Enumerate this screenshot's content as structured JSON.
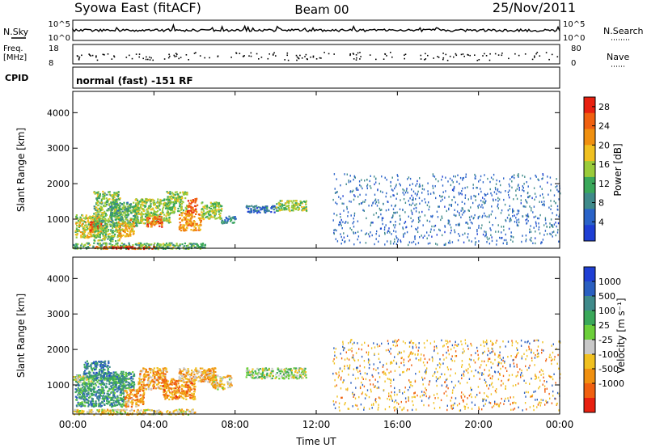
{
  "header": {
    "station": "Syowa East (fitACF)",
    "beam": "Beam 00",
    "date": "25/Nov/2011"
  },
  "top_strip": {
    "left_label_1": "N.Sky",
    "left_label_2_line1": "Freq.",
    "left_label_2_line2": "[MHz]",
    "left_label_3": "CPID",
    "right_label_1": "N.Search",
    "right_label_2": "Nave",
    "sky_ticks": [
      "10^5",
      "10^0"
    ],
    "search_ticks": [
      "10^5",
      "10^0"
    ],
    "freq_ticks": [
      "18",
      "8"
    ],
    "nave_ticks": [
      "80",
      "0"
    ],
    "cpid_text": "normal (fast) -151 RF"
  },
  "colors": {
    "power_scale": [
      "#1f3fd4",
      "#2a63c8",
      "#3f8a8a",
      "#3aa85a",
      "#9acb3a",
      "#f0c020",
      "#f09010",
      "#f06010",
      "#e82010"
    ],
    "velocity_scale": [
      "#1f3fd4",
      "#2a5fc0",
      "#3f8a8a",
      "#3aa85a",
      "#6ccf3a",
      "#c8c8c8",
      "#f0c020",
      "#f09010",
      "#f06010",
      "#e82010"
    ]
  },
  "chart_data": [
    {
      "type": "heatmap",
      "panel": "power",
      "ylabel": "Slant Range [km]",
      "xlabel": "",
      "x_ticks": [
        "00:00",
        "04:00",
        "08:00",
        "12:00",
        "16:00",
        "20:00",
        "00:00"
      ],
      "xlim_hours": [
        0,
        24
      ],
      "y_ticks": [
        1000,
        2000,
        3000,
        4000
      ],
      "ylim": [
        180,
        4600
      ],
      "colorbar_label": "Power [dB]",
      "colorbar_ticks": [
        4,
        8,
        12,
        16,
        20,
        24,
        28
      ],
      "colorbar_range": [
        0,
        30
      ],
      "regions": [
        {
          "t0": 0.1,
          "t1": 1.3,
          "r0": 500,
          "r1": 1150,
          "level": 0.55
        },
        {
          "t0": 0.8,
          "t1": 1.4,
          "r0": 650,
          "r1": 950,
          "level": 0.95
        },
        {
          "t0": 1.0,
          "t1": 2.3,
          "r0": 400,
          "r1": 1800,
          "level": 0.45
        },
        {
          "t0": 1.8,
          "t1": 3.2,
          "r0": 800,
          "r1": 1500,
          "level": 0.35
        },
        {
          "t0": 2.2,
          "t1": 3.0,
          "r0": 500,
          "r1": 1000,
          "level": 0.7
        },
        {
          "t0": 3.0,
          "t1": 4.8,
          "r0": 900,
          "r1": 1600,
          "level": 0.5
        },
        {
          "t0": 3.6,
          "t1": 4.4,
          "r0": 800,
          "r1": 1100,
          "level": 0.85
        },
        {
          "t0": 4.6,
          "t1": 5.6,
          "r0": 1200,
          "r1": 1800,
          "level": 0.45
        },
        {
          "t0": 5.2,
          "t1": 6.3,
          "r0": 700,
          "r1": 1200,
          "level": 0.75
        },
        {
          "t0": 5.6,
          "t1": 6.1,
          "r0": 1200,
          "r1": 1600,
          "level": 0.9
        },
        {
          "t0": 6.3,
          "t1": 7.3,
          "r0": 1000,
          "r1": 1500,
          "level": 0.5
        },
        {
          "t0": 7.3,
          "t1": 8.0,
          "r0": 900,
          "r1": 1100,
          "level": 0.25
        },
        {
          "t0": 8.5,
          "t1": 10.0,
          "r0": 1200,
          "r1": 1400,
          "level": 0.15
        },
        {
          "t0": 10.0,
          "t1": 11.5,
          "r0": 1250,
          "r1": 1550,
          "level": 0.5
        },
        {
          "t0": 0.0,
          "t1": 6.5,
          "r0": 180,
          "r1": 350,
          "level": 0.4
        },
        {
          "t0": 1.0,
          "t1": 4.0,
          "r0": 180,
          "r1": 260,
          "level": 0.92
        }
      ],
      "sparse_region": {
        "t0": 12.8,
        "t1": 24.0,
        "r0": 300,
        "r1": 2300,
        "level": 0.05
      }
    },
    {
      "type": "heatmap",
      "panel": "velocity",
      "ylabel": "Slant Range [km]",
      "xlabel": "Time UT",
      "x_ticks": [
        "00:00",
        "04:00",
        "08:00",
        "12:00",
        "16:00",
        "20:00",
        "00:00"
      ],
      "xlim_hours": [
        0,
        24
      ],
      "y_ticks": [
        1000,
        2000,
        3000,
        4000
      ],
      "ylim": [
        180,
        4600
      ],
      "colorbar_label": "Velocity [m s⁻¹]",
      "colorbar_ticks": [
        "1000",
        "500",
        "100",
        "25",
        "-25",
        "-100",
        "-500",
        "-1000"
      ],
      "colorbar_range": [
        -1250,
        1250
      ],
      "regions": [
        {
          "t0": 0.1,
          "t1": 2.5,
          "r0": 400,
          "r1": 1300,
          "level": 0.28
        },
        {
          "t0": 0.5,
          "t1": 1.8,
          "r0": 1200,
          "r1": 1700,
          "level": 0.22
        },
        {
          "t0": 1.8,
          "t1": 3.0,
          "r0": 900,
          "r1": 1400,
          "level": 0.3
        },
        {
          "t0": 2.5,
          "t1": 3.5,
          "r0": 400,
          "r1": 900,
          "level": 0.75
        },
        {
          "t0": 3.2,
          "t1": 4.6,
          "r0": 900,
          "r1": 1500,
          "level": 0.72
        },
        {
          "t0": 4.4,
          "t1": 6.0,
          "r0": 600,
          "r1": 1200,
          "level": 0.8
        },
        {
          "t0": 5.2,
          "t1": 7.0,
          "r0": 1100,
          "r1": 1500,
          "level": 0.7
        },
        {
          "t0": 6.8,
          "t1": 7.8,
          "r0": 900,
          "r1": 1300,
          "level": 0.65
        },
        {
          "t0": 0.0,
          "t1": 1.0,
          "r0": 1100,
          "r1": 1300,
          "level": 0.5
        },
        {
          "t0": 8.5,
          "t1": 11.5,
          "r0": 1200,
          "r1": 1500,
          "level": 0.5
        },
        {
          "t0": 0.0,
          "t1": 6.0,
          "r0": 180,
          "r1": 330,
          "level": 0.6
        }
      ],
      "sparse_region": {
        "t0": 12.8,
        "t1": 24.0,
        "r0": 300,
        "r1": 2300,
        "level": 0.6
      }
    }
  ]
}
